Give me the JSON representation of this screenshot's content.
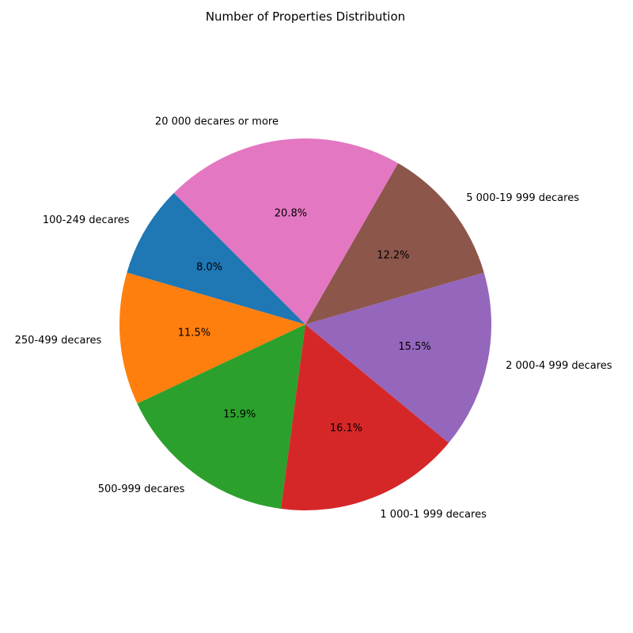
{
  "chart_data": {
    "type": "pie",
    "title": "Number of Properties Distribution",
    "start_angle_deg": 135,
    "direction": "counterclockwise",
    "slices": [
      {
        "label": "100-249 decares",
        "value": 8.0,
        "pct_label": "8.0%",
        "color": "#1f77b4"
      },
      {
        "label": "250-499 decares",
        "value": 11.5,
        "pct_label": "11.5%",
        "color": "#ff7f0e"
      },
      {
        "label": "500-999 decares",
        "value": 15.9,
        "pct_label": "15.9%",
        "color": "#2ca02c"
      },
      {
        "label": "1 000-1 999 decares",
        "value": 16.1,
        "pct_label": "16.1%",
        "color": "#d62728"
      },
      {
        "label": "2 000-4 999 decares",
        "value": 15.5,
        "pct_label": "15.5%",
        "color": "#9467bd"
      },
      {
        "label": "5 000-19 999 decares",
        "value": 12.2,
        "pct_label": "12.2%",
        "color": "#8c564b"
      },
      {
        "label": "20 000 decares or more",
        "value": 20.8,
        "pct_label": "20.8%",
        "color": "#e377c2"
      }
    ]
  }
}
